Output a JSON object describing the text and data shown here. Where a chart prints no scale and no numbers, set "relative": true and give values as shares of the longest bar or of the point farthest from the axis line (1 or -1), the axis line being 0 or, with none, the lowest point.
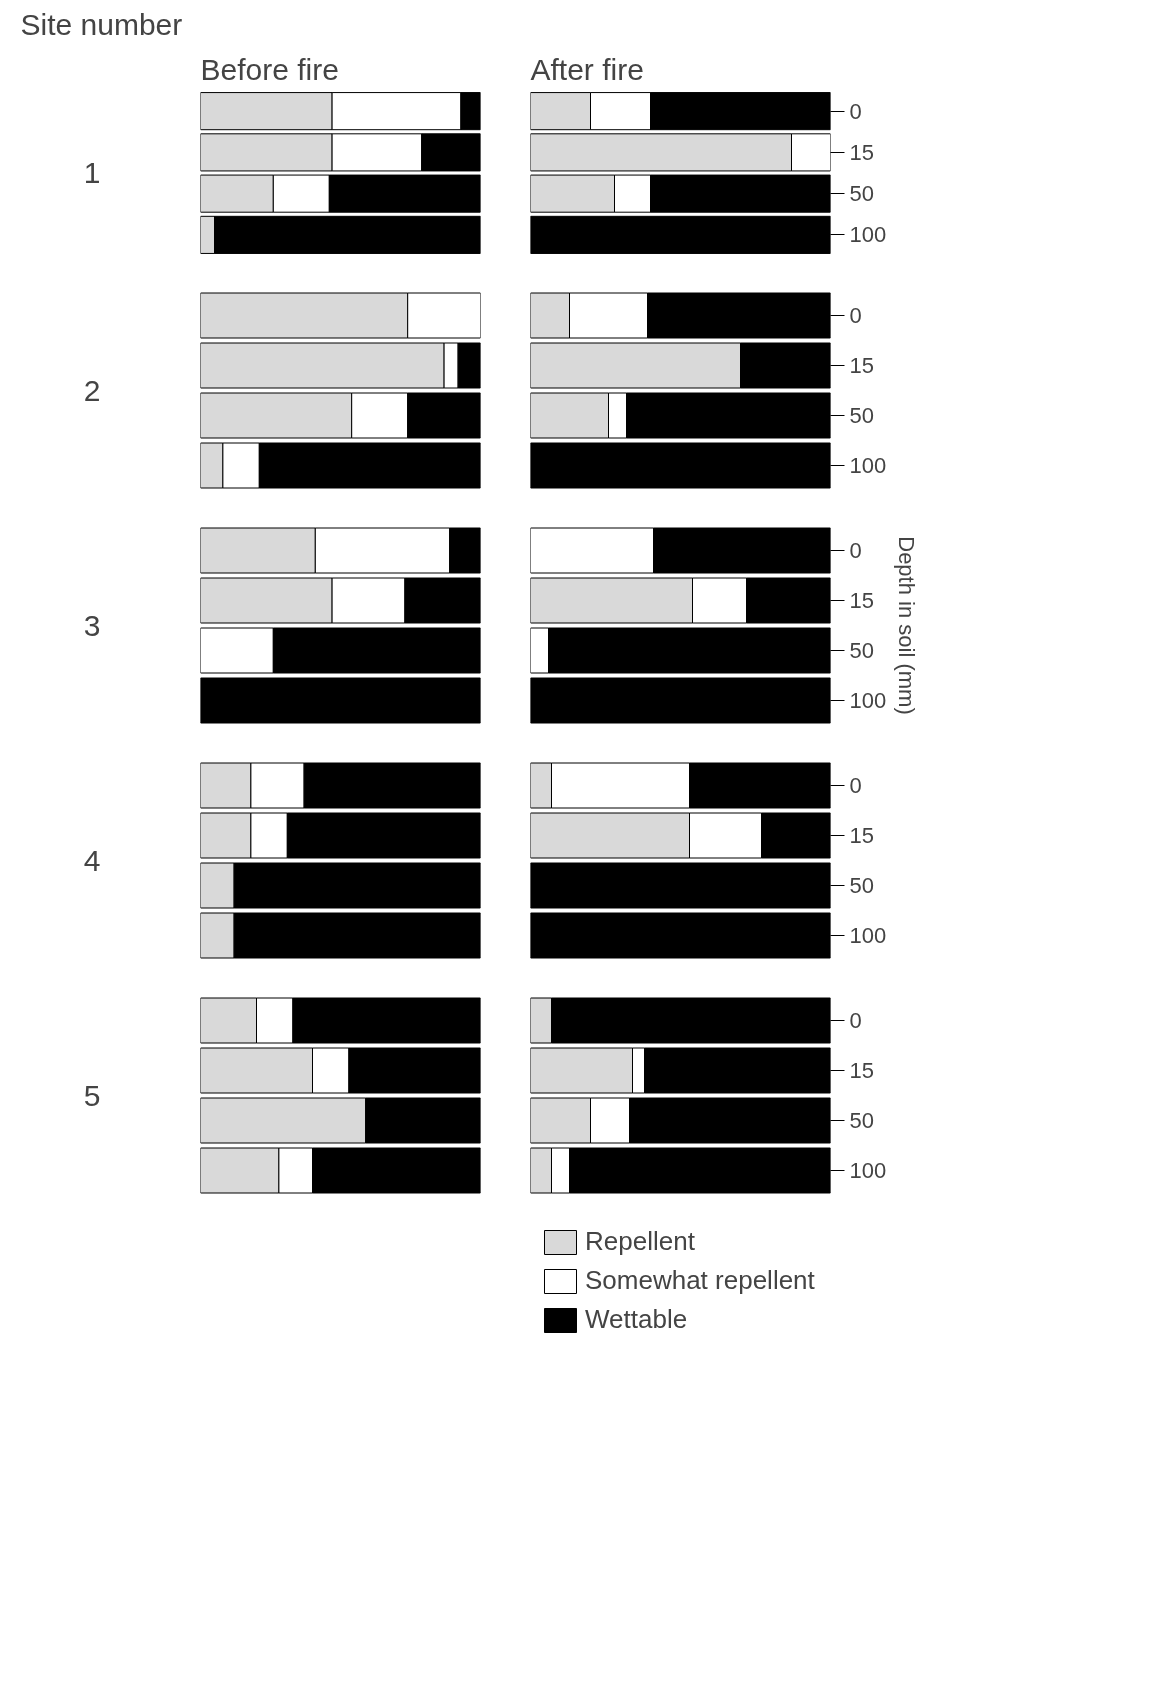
{
  "chart_data": [
    {
      "type": "bar",
      "orientation": "horizontal",
      "stacked": true,
      "relative": true,
      "title": "Before fire",
      "ylabel": "1",
      "annotations": [
        "Site number"
      ],
      "tick_labels": false,
      "categories": [
        "0",
        "15",
        "50",
        "100"
      ],
      "series": [
        {
          "color": "#d9d9d9",
          "values": [
            0.47,
            0.47,
            0.26,
            0.05
          ]
        },
        {
          "color": "#ffffff",
          "values": [
            0.46,
            0.32,
            0.2,
            0
          ]
        },
        {
          "color": "#000000",
          "values": [
            0.07,
            0.21,
            0.54,
            0.95
          ]
        }
      ]
    },
    {
      "type": "bar",
      "orientation": "horizontal",
      "stacked": true,
      "relative": true,
      "title": "After fire",
      "categories": [
        "0",
        "15",
        "50",
        "100"
      ],
      "series": [
        {
          "color": "#d9d9d9",
          "values": [
            0.2,
            0.87,
            0.28,
            0
          ]
        },
        {
          "color": "#ffffff",
          "values": [
            0.2,
            0.13,
            0.12,
            0
          ]
        },
        {
          "color": "#000000",
          "values": [
            0.6,
            0,
            0.6,
            1
          ]
        }
      ]
    },
    {
      "type": "bar",
      "orientation": "horizontal",
      "stacked": true,
      "relative": true,
      "ylabel": "2",
      "tick_labels": false,
      "categories": [
        "0",
        "15",
        "50",
        "100"
      ],
      "series": [
        {
          "color": "#d9d9d9",
          "values": [
            0.74,
            0.87,
            0.54,
            0.08
          ]
        },
        {
          "color": "#ffffff",
          "values": [
            0.26,
            0.05,
            0.2,
            0.13
          ]
        },
        {
          "color": "#000000",
          "values": [
            0,
            0.08,
            0.26,
            0.79
          ]
        }
      ]
    },
    {
      "type": "bar",
      "orientation": "horizontal",
      "stacked": true,
      "relative": true,
      "categories": [
        "0",
        "15",
        "50",
        "100"
      ],
      "series": [
        {
          "color": "#d9d9d9",
          "values": [
            0.13,
            0.7,
            0.26,
            0
          ]
        },
        {
          "color": "#ffffff",
          "values": [
            0.26,
            0,
            0.06,
            0
          ]
        },
        {
          "color": "#000000",
          "values": [
            0.61,
            0.3,
            0.68,
            1
          ]
        }
      ]
    },
    {
      "type": "bar",
      "orientation": "horizontal",
      "stacked": true,
      "relative": true,
      "ylabel": "3",
      "tick_labels": false,
      "categories": [
        "0",
        "15",
        "50",
        "100"
      ],
      "series": [
        {
          "color": "#d9d9d9",
          "values": [
            0.41,
            0.47,
            0,
            0
          ]
        },
        {
          "color": "#ffffff",
          "values": [
            0.48,
            0.26,
            0.26,
            0
          ]
        },
        {
          "color": "#000000",
          "values": [
            0.11,
            0.27,
            0.74,
            1
          ]
        }
      ]
    },
    {
      "type": "bar",
      "orientation": "horizontal",
      "stacked": true,
      "relative": true,
      "y2label": "Depth in soil (mm)",
      "categories": [
        "0",
        "15",
        "50",
        "100"
      ],
      "series": [
        {
          "color": "#d9d9d9",
          "values": [
            0,
            0.54,
            0,
            0
          ]
        },
        {
          "color": "#ffffff",
          "values": [
            0.41,
            0.18,
            0.06,
            0
          ]
        },
        {
          "color": "#000000",
          "values": [
            0.59,
            0.28,
            0.94,
            1
          ]
        }
      ]
    },
    {
      "type": "bar",
      "orientation": "horizontal",
      "stacked": true,
      "relative": true,
      "ylabel": "4",
      "tick_labels": false,
      "categories": [
        "0",
        "15",
        "50",
        "100"
      ],
      "series": [
        {
          "color": "#d9d9d9",
          "values": [
            0.18,
            0.18,
            0.12,
            0.12
          ]
        },
        {
          "color": "#ffffff",
          "values": [
            0.19,
            0.13,
            0,
            0
          ]
        },
        {
          "color": "#000000",
          "values": [
            0.63,
            0.69,
            0.88,
            0.88
          ]
        }
      ]
    },
    {
      "type": "bar",
      "orientation": "horizontal",
      "stacked": true,
      "relative": true,
      "categories": [
        "0",
        "15",
        "50",
        "100"
      ],
      "series": [
        {
          "color": "#d9d9d9",
          "values": [
            0.07,
            0.53,
            0,
            0
          ]
        },
        {
          "color": "#ffffff",
          "values": [
            0.46,
            0.24,
            0,
            0
          ]
        },
        {
          "color": "#000000",
          "values": [
            0.47,
            0.23,
            1,
            1
          ]
        }
      ]
    },
    {
      "type": "bar",
      "orientation": "horizontal",
      "stacked": true,
      "relative": true,
      "ylabel": "5",
      "tick_labels": false,
      "categories": [
        "0",
        "15",
        "50",
        "100"
      ],
      "series": [
        {
          "color": "#d9d9d9",
          "values": [
            0.2,
            0.4,
            0.59,
            0.28
          ]
        },
        {
          "color": "#ffffff",
          "values": [
            0.13,
            0.13,
            0,
            0.12
          ]
        },
        {
          "color": "#000000",
          "values": [
            0.67,
            0.47,
            0.41,
            0.6
          ]
        }
      ]
    },
    {
      "type": "bar",
      "orientation": "horizontal",
      "stacked": true,
      "relative": true,
      "legend": "bottom",
      "categories": [
        "0",
        "15",
        "50",
        "100"
      ],
      "series": [
        {
          "name": "Repellent",
          "color": "#d9d9d9",
          "values": [
            0.07,
            0.34,
            0.2,
            0.07
          ]
        },
        {
          "name": "Somewhat repellent",
          "color": "#ffffff",
          "values": [
            0,
            0.04,
            0.13,
            0.06
          ]
        },
        {
          "name": "Wettable",
          "color": "#000000",
          "values": [
            0.93,
            0.62,
            0.67,
            0.87
          ]
        }
      ]
    }
  ]
}
